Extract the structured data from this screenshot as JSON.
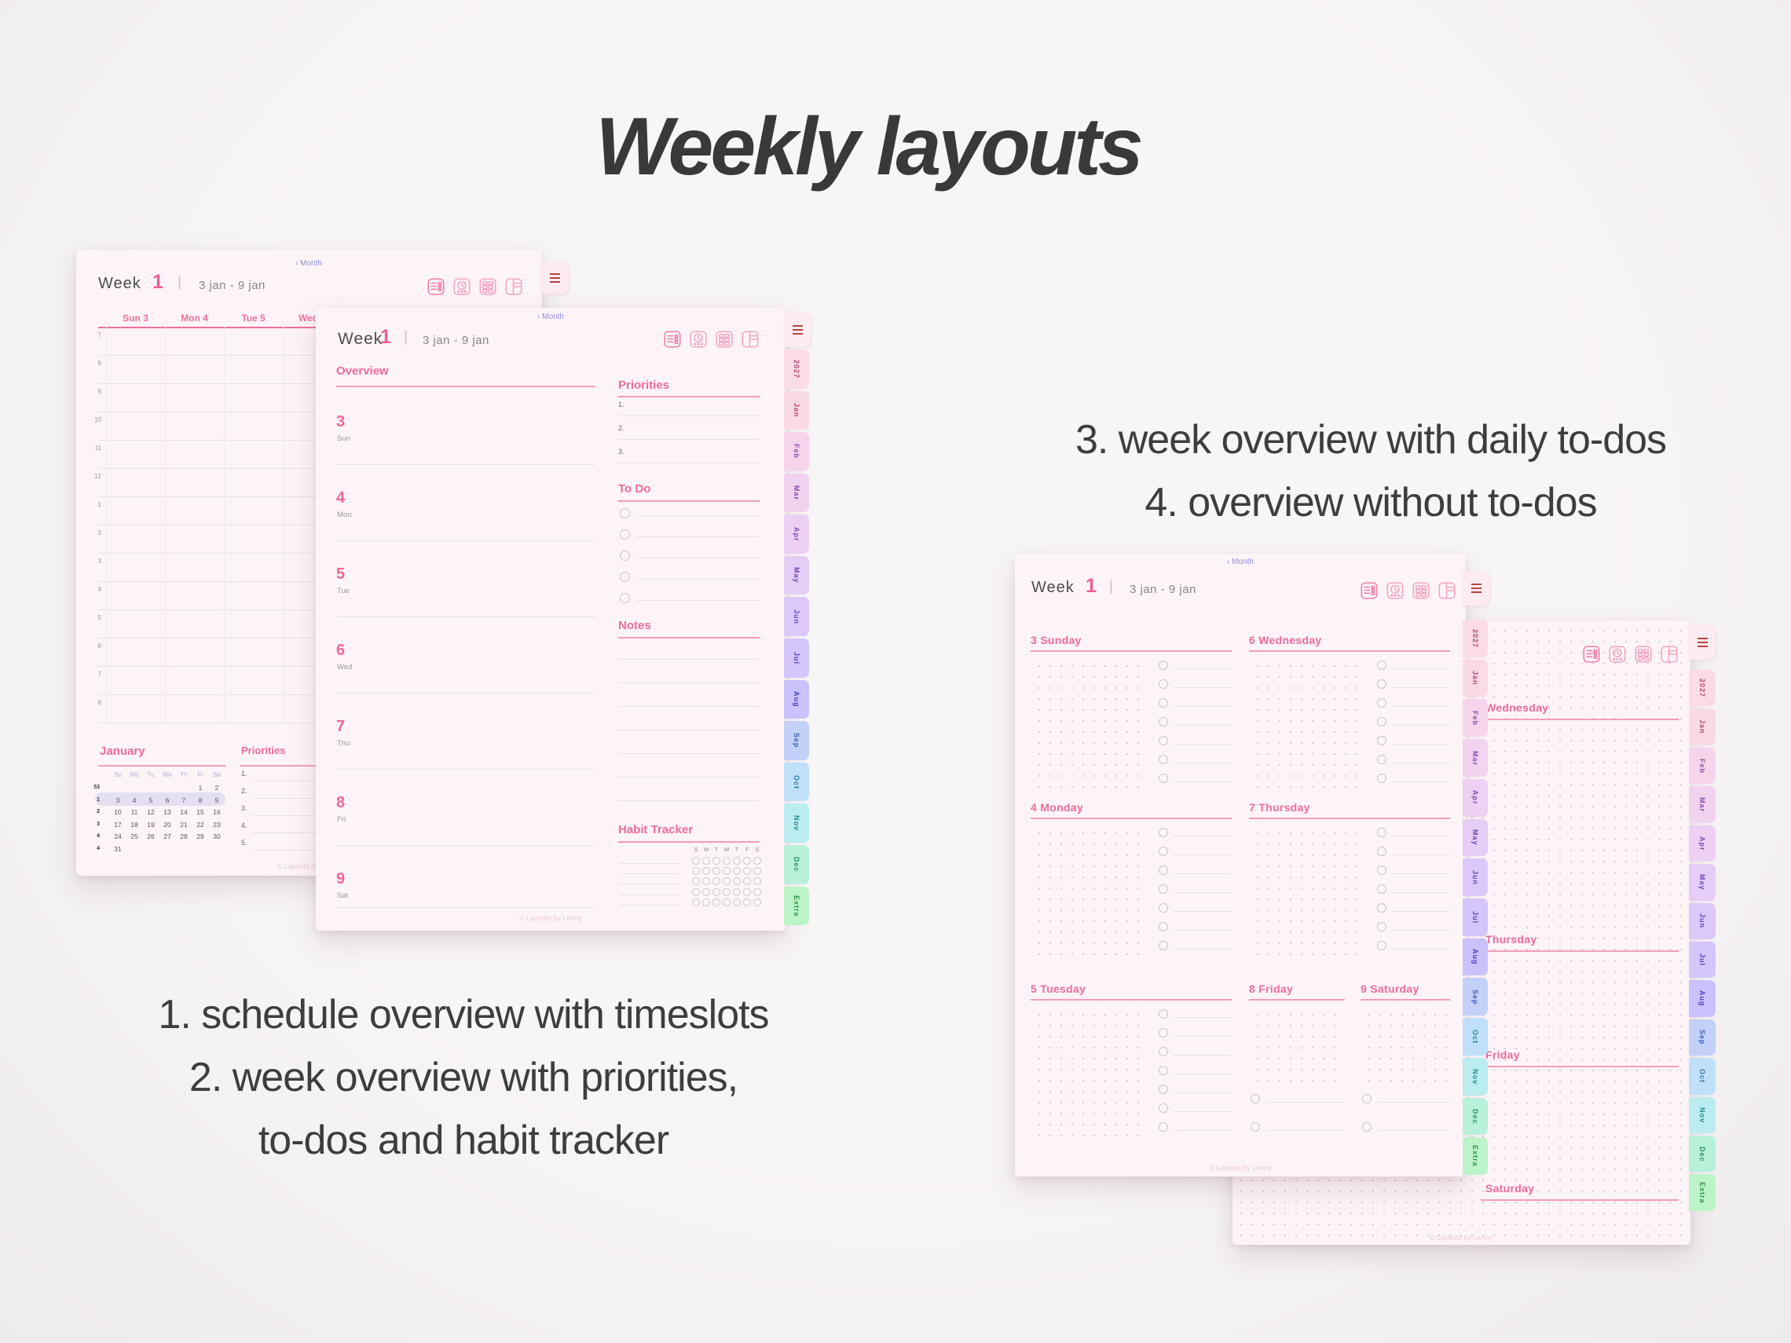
{
  "title": "Weekly layouts",
  "captions": {
    "left_lines": [
      "1.  schedule overview with timeslots",
      "2. week overview with priorities,",
      "to-dos and habit tracker"
    ],
    "right_lines": [
      "3. week overview with daily to-dos",
      "4. overview without to-dos"
    ]
  },
  "planner_common": {
    "month_link": "‹ Month",
    "week_label": "Week",
    "week_number": "1",
    "separator": "|",
    "date_range": "3 jan - 9 jan",
    "footer": "© Layouts by Lenny",
    "view_icons": [
      "list-view-icon",
      "schedule-view-icon",
      "grid-view-icon",
      "split-view-icon"
    ],
    "accent_pink": "#ee6c9d",
    "link_purple": "#918ce2",
    "menu_red": "#b2463f",
    "tabs": [
      {
        "label": "2027",
        "bg": "#fbdce6",
        "fg": "#b34a74"
      },
      {
        "label": "Jan",
        "bg": "#fad9e6",
        "fg": "#b34a74"
      },
      {
        "label": "Feb",
        "bg": "#f6d5eb",
        "fg": "#9350a8"
      },
      {
        "label": "Mar",
        "bg": "#f2d3ef",
        "fg": "#8a4daf"
      },
      {
        "label": "Apr",
        "bg": "#edd0f3",
        "fg": "#7e4bb4"
      },
      {
        "label": "May",
        "bg": "#e5cdf6",
        "fg": "#6f49ba"
      },
      {
        "label": "Jun",
        "bg": "#ddc9f9",
        "fg": "#6046c0"
      },
      {
        "label": "Jul",
        "bg": "#d4c5fb",
        "fg": "#5443c5"
      },
      {
        "label": "Aug",
        "bg": "#cbc1fc",
        "fg": "#4a40ca"
      },
      {
        "label": "Sep",
        "bg": "#c3d0f8",
        "fg": "#3c5fb8"
      },
      {
        "label": "Oct",
        "bg": "#bfe0f8",
        "fg": "#2f78a0"
      },
      {
        "label": "Nov",
        "bg": "#baecf0",
        "fg": "#268b8b"
      },
      {
        "label": "Dec",
        "bg": "#b8f0da",
        "fg": "#2b9065"
      },
      {
        "label": "Extra",
        "bg": "#bcf4c8",
        "fg": "#309447"
      }
    ]
  },
  "planner1": {
    "day_columns": [
      "Sun 3",
      "Mon 4",
      "Tue 5",
      "Wed 6"
    ],
    "time_labels": [
      "7",
      "8",
      "9",
      "10",
      "11",
      "12",
      "1",
      "2",
      "3",
      "4",
      "5",
      "6",
      "7",
      "8"
    ],
    "mini_calendar": {
      "title": "January",
      "day_header": [
        "Su",
        "Mo",
        "Tu",
        "We",
        "Th",
        "Fr",
        "Sa"
      ],
      "week_numbers": [
        "53",
        "1",
        "2",
        "3",
        "4",
        "4"
      ],
      "weeks": [
        [
          "",
          "",
          "",
          "",
          "",
          "1",
          "2"
        ],
        [
          "3",
          "4",
          "5",
          "6",
          "7",
          "8",
          "9"
        ],
        [
          "10",
          "11",
          "12",
          "13",
          "14",
          "15",
          "16"
        ],
        [
          "17",
          "18",
          "19",
          "20",
          "21",
          "22",
          "23"
        ],
        [
          "24",
          "25",
          "26",
          "27",
          "28",
          "29",
          "30"
        ],
        [
          "31",
          "",
          "",
          "",
          "",
          "",
          ""
        ]
      ],
      "highlighted_week_index": 1
    },
    "priorities": {
      "title": "Priorities",
      "items": [
        "1.",
        "2.",
        "3.",
        "4.",
        "5."
      ]
    }
  },
  "planner2": {
    "overview_title": "Overview",
    "days": [
      {
        "num": "3",
        "abbr": "Sun"
      },
      {
        "num": "4",
        "abbr": "Mon"
      },
      {
        "num": "5",
        "abbr": "Tue"
      },
      {
        "num": "6",
        "abbr": "Wed"
      },
      {
        "num": "7",
        "abbr": "Thu"
      },
      {
        "num": "8",
        "abbr": "Fri"
      },
      {
        "num": "9",
        "abbr": "Sat"
      }
    ],
    "priorities": {
      "title": "Priorities",
      "items": [
        "1.",
        "2.",
        "3."
      ]
    },
    "todo": {
      "title": "To Do",
      "circle_count": 5
    },
    "notes": {
      "title": "Notes",
      "line_count": 7
    },
    "habit": {
      "title": "Habit Tracker",
      "day_letters": [
        "S",
        "M",
        "T",
        "W",
        "T",
        "F",
        "S"
      ],
      "row_count": 5
    }
  },
  "planner3": {
    "sections": [
      "3 Sunday",
      "6 Wednesday",
      "4 Monday",
      "7 Thursday",
      "5 Tuesday",
      "8 Friday",
      "9 Saturday"
    ]
  },
  "planner4": {
    "sections": [
      "Wednesday",
      "Thursday",
      "Friday",
      "Saturday"
    ]
  }
}
